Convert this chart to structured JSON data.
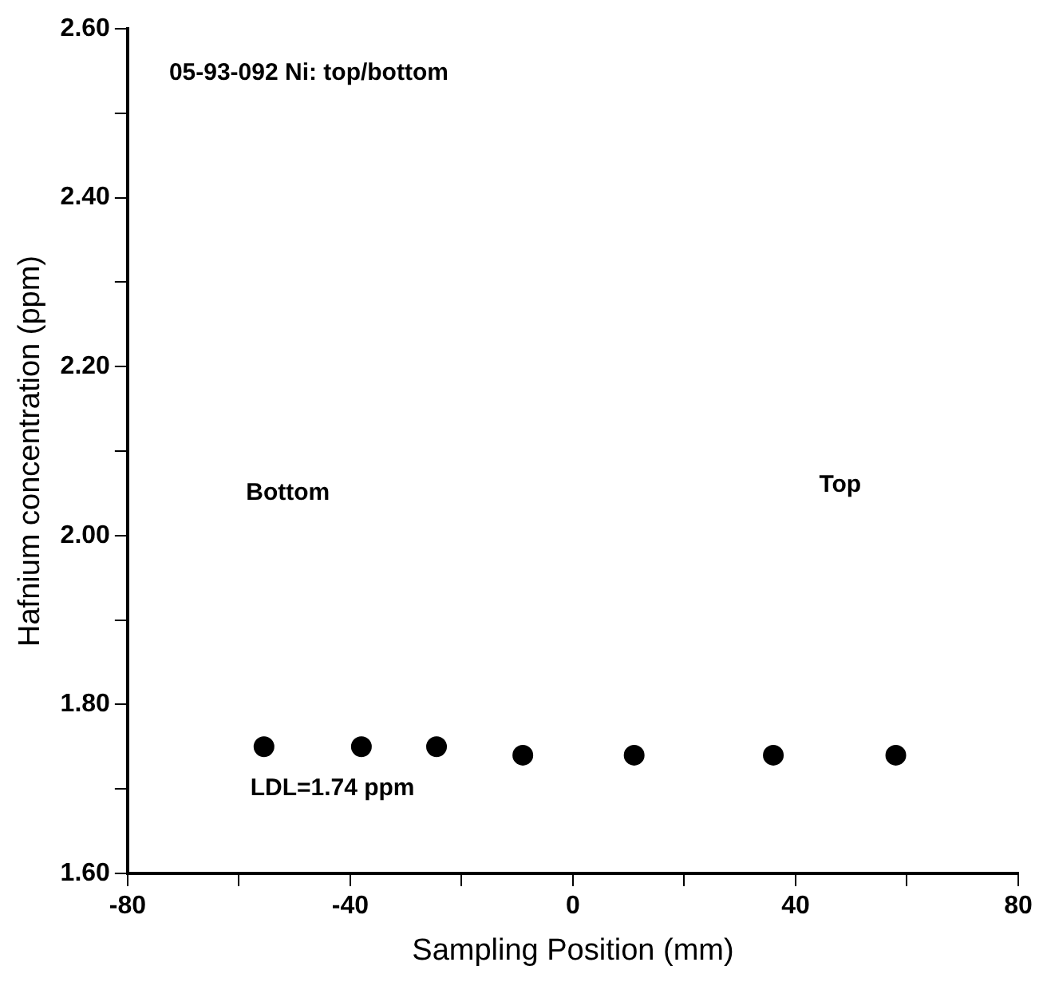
{
  "chart_data": {
    "type": "scatter",
    "title": "05-93-092 Ni: top/bottom",
    "xlabel": "Sampling Position (mm)",
    "ylabel": "Hafnium concentration (ppm)",
    "x": [
      -55.5,
      -38,
      -24.5,
      -9,
      11,
      36,
      58
    ],
    "values": [
      1.75,
      1.75,
      1.75,
      1.74,
      1.74,
      1.74,
      1.74
    ],
    "color": "#000000",
    "marker": "circle",
    "grid": false,
    "legend": false,
    "xlim": [
      -80,
      80
    ],
    "xticks": [
      -80,
      {
        "value": -60,
        "label": null
      },
      -40,
      {
        "value": -20,
        "label": null
      },
      0,
      {
        "value": 20,
        "label": null
      },
      40,
      {
        "value": 60,
        "label": null
      },
      80
    ],
    "ylim": [
      1.6,
      2.6
    ],
    "yticks": [
      {
        "value": 1.6,
        "label": "1.60"
      },
      {
        "value": 1.7,
        "label": null
      },
      {
        "value": 1.8,
        "label": "1.80"
      },
      {
        "value": 1.9,
        "label": null
      },
      {
        "value": 2.0,
        "label": "2.00"
      },
      {
        "value": 2.1,
        "label": null
      },
      {
        "value": 2.2,
        "label": "2.20"
      },
      {
        "value": 2.3,
        "label": null
      },
      {
        "value": 2.4,
        "label": "2.40"
      },
      {
        "value": 2.5,
        "label": null
      },
      {
        "value": 2.6,
        "label": "2.60"
      }
    ],
    "annotations": [
      "Bottom",
      "Top",
      "LDL=1.74 ppm"
    ]
  }
}
